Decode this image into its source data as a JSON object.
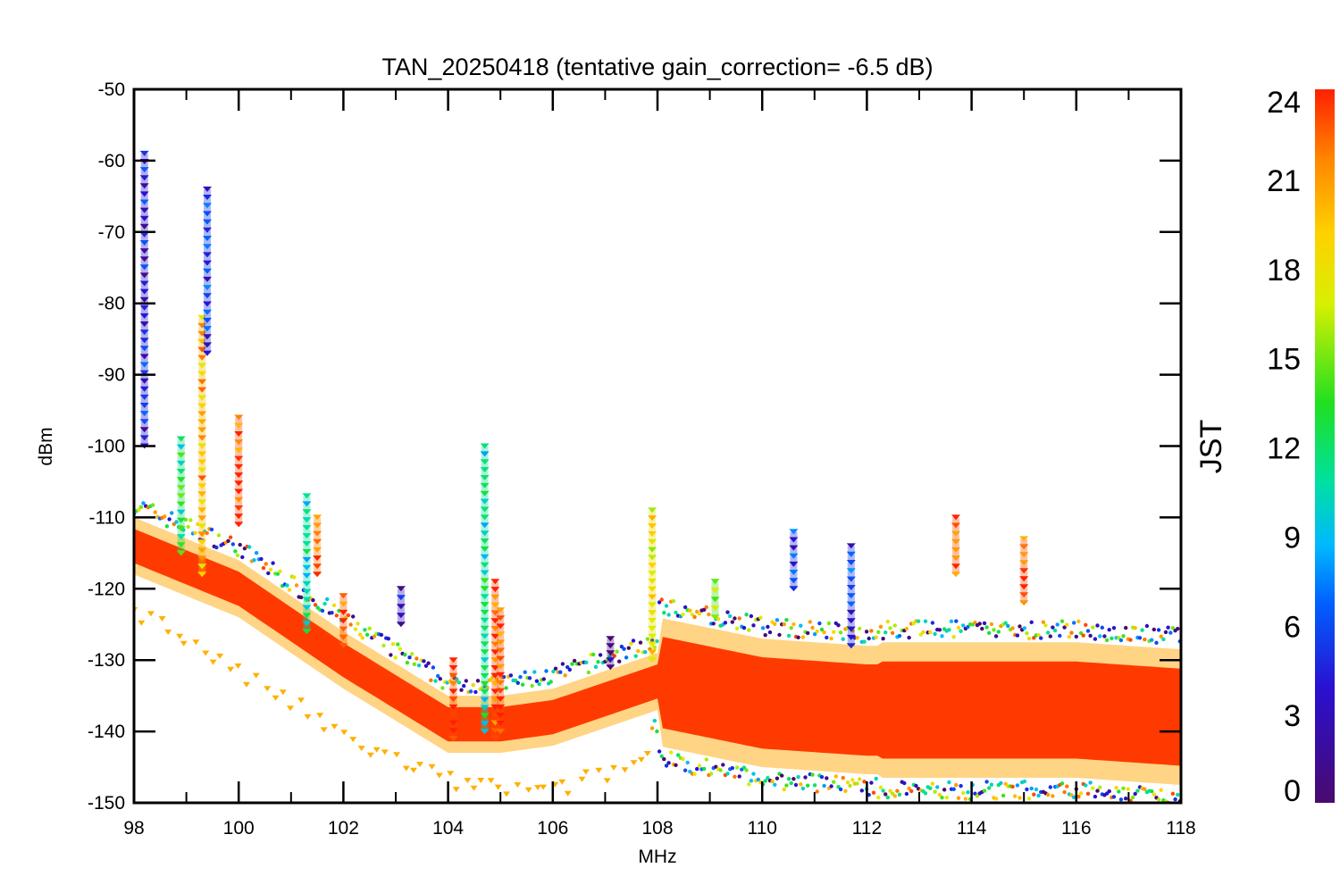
{
  "chart_data": {
    "type": "scatter",
    "title": "TAN_20250418 (tentative gain_correction= -6.5 dB)",
    "xlabel": "MHz",
    "ylabel": "dBm",
    "xlim": [
      98,
      118
    ],
    "ylim": [
      -150,
      -50
    ],
    "x_ticks": [
      "98",
      "100",
      "102",
      "104",
      "106",
      "108",
      "110",
      "112",
      "114",
      "116",
      "118"
    ],
    "y_ticks": [
      "-50",
      "-60",
      "-70",
      "-80",
      "-90",
      "-100",
      "-110",
      "-120",
      "-130",
      "-140",
      "-150"
    ],
    "colorbar": {
      "label": "JST",
      "range": [
        0,
        24
      ],
      "ticks": [
        "0",
        "3",
        "6",
        "9",
        "12",
        "15",
        "18",
        "21",
        "24"
      ],
      "colormap": "rainbow (purple→blue→cyan→green→yellow→orange→red)"
    },
    "grid": false,
    "noise_floor": [
      {
        "x": 98,
        "y": -114
      },
      {
        "x": 100,
        "y": -120
      },
      {
        "x": 102,
        "y": -130
      },
      {
        "x": 104,
        "y": -139
      },
      {
        "x": 105,
        "y": -139
      },
      {
        "x": 106,
        "y": -138
      },
      {
        "x": 108,
        "y": -133
      },
      {
        "x": 110,
        "y": -136
      },
      {
        "x": 112,
        "y": -137
      },
      {
        "x": 114,
        "y": -137
      },
      {
        "x": 116,
        "y": -137
      },
      {
        "x": 118,
        "y": -138
      }
    ],
    "low_trace": {
      "color": "#ffb000",
      "points": [
        {
          "x": 98,
          "y": -123
        },
        {
          "x": 99,
          "y": -127
        },
        {
          "x": 100,
          "y": -132
        },
        {
          "x": 101,
          "y": -136
        },
        {
          "x": 102,
          "y": -141
        },
        {
          "x": 103,
          "y": -144
        },
        {
          "x": 104,
          "y": -147
        },
        {
          "x": 105,
          "y": -148
        },
        {
          "x": 106,
          "y": -148.5
        },
        {
          "x": 107,
          "y": -146
        },
        {
          "x": 108,
          "y": -143
        }
      ]
    },
    "peaks": [
      {
        "freq": 98.2,
        "top_dbm": -59,
        "base_dbm": -100,
        "jst": 4
      },
      {
        "freq": 98.9,
        "top_dbm": -99,
        "base_dbm": -115,
        "jst": 12
      },
      {
        "freq": 99.3,
        "top_dbm": -82,
        "base_dbm": -118,
        "jst": 20
      },
      {
        "freq": 99.4,
        "top_dbm": -64,
        "base_dbm": -87,
        "jst": 5
      },
      {
        "freq": 100.0,
        "top_dbm": -96,
        "base_dbm": -111,
        "jst": 23
      },
      {
        "freq": 101.3,
        "top_dbm": -107,
        "base_dbm": -126,
        "jst": 11
      },
      {
        "freq": 101.5,
        "top_dbm": -110,
        "base_dbm": -118,
        "jst": 22
      },
      {
        "freq": 102.0,
        "top_dbm": -121,
        "base_dbm": -128,
        "jst": 23
      },
      {
        "freq": 103.1,
        "top_dbm": -120,
        "base_dbm": -125,
        "jst": 3
      },
      {
        "freq": 104.1,
        "top_dbm": -130,
        "base_dbm": -141,
        "jst": 23
      },
      {
        "freq": 104.7,
        "top_dbm": -100,
        "base_dbm": -140,
        "jst": 11
      },
      {
        "freq": 104.9,
        "top_dbm": -119,
        "base_dbm": -141,
        "jst": 23
      },
      {
        "freq": 105.0,
        "top_dbm": -123,
        "base_dbm": -140,
        "jst": 23
      },
      {
        "freq": 107.1,
        "top_dbm": -127,
        "base_dbm": -131,
        "jst": 1
      },
      {
        "freq": 107.9,
        "top_dbm": -109,
        "base_dbm": -130,
        "jst": 18
      },
      {
        "freq": 109.1,
        "top_dbm": -119,
        "base_dbm": -124,
        "jst": 14
      },
      {
        "freq": 110.6,
        "top_dbm": -112,
        "base_dbm": -120,
        "jst": 5
      },
      {
        "freq": 111.7,
        "top_dbm": -114,
        "base_dbm": -128,
        "jst": 5
      },
      {
        "freq": 113.7,
        "top_dbm": -110,
        "base_dbm": -118,
        "jst": 23
      },
      {
        "freq": 115.0,
        "top_dbm": -113,
        "base_dbm": -122,
        "jst": 23
      }
    ]
  }
}
